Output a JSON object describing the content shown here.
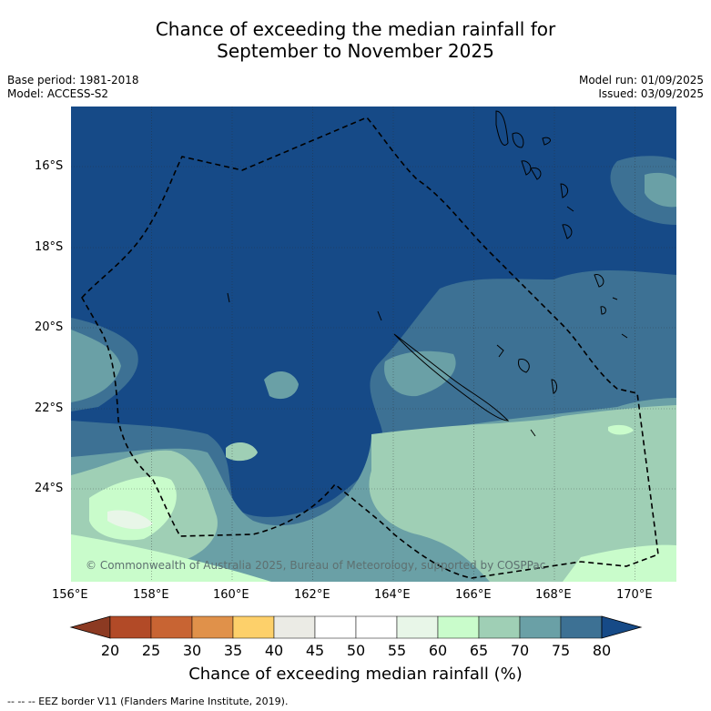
{
  "header": {
    "title_line1": "Chance of exceeding the median rainfall for",
    "title_line2": "September to November 2025",
    "base_period": "Base period: 1981-2018",
    "model": "Model: ACCESS-S2",
    "model_run": "Model run: 01/09/2025",
    "issued": "Issued: 03/09/2025"
  },
  "map": {
    "lat_labels": [
      "16°S",
      "18°S",
      "20°S",
      "22°S",
      "24°S"
    ],
    "lon_labels": [
      "156°E",
      "158°E",
      "160°E",
      "162°E",
      "164°E",
      "166°E",
      "168°E",
      "170°E"
    ],
    "copyright": "© Commonwealth of Australia 2025, Bureau of Meteorology, supported by COSPPac"
  },
  "colorbar": {
    "ticks": [
      "20",
      "25",
      "30",
      "35",
      "40",
      "45",
      "50",
      "55",
      "60",
      "65",
      "70",
      "75",
      "80"
    ],
    "colors": [
      "#8c3a22",
      "#b24a27",
      "#c86433",
      "#e0914a",
      "#fdd06a",
      "#ebebe5",
      "#ffffff",
      "#ffffff",
      "#e8f6e8",
      "#c9fccb",
      "#9fcfb5",
      "#6aa0a6",
      "#3d7194",
      "#164a87"
    ],
    "title": "Chance of exceeding median rainfall (%)"
  },
  "footnote": "--  --  -- EEZ border V11 (Flanders Marine Institute, 2019)."
}
